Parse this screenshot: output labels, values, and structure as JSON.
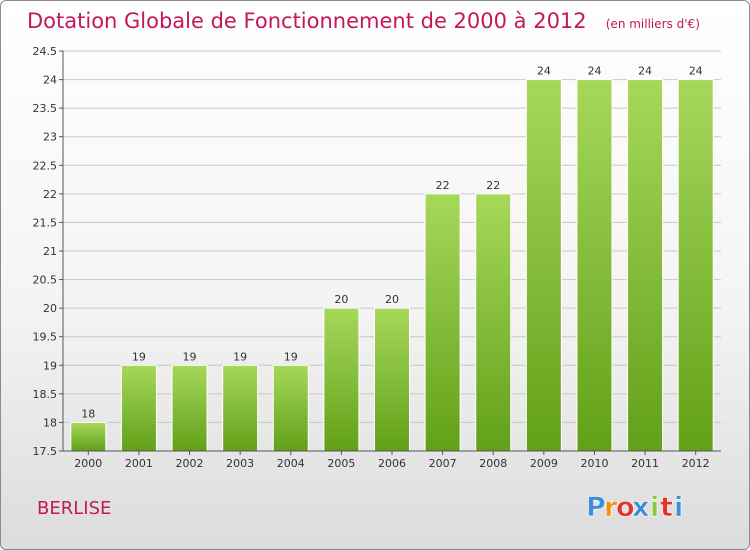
{
  "chart_data": {
    "type": "bar",
    "title": "Dotation Globale de Fonctionnement de 2000 à 2012",
    "unit_label": "(en milliers d'€)",
    "categories": [
      "2000",
      "2001",
      "2002",
      "2003",
      "2004",
      "2005",
      "2006",
      "2007",
      "2008",
      "2009",
      "2010",
      "2011",
      "2012"
    ],
    "values": [
      18,
      19,
      19,
      19,
      19,
      20,
      20,
      22,
      22,
      24,
      24,
      24,
      24
    ],
    "value_labels": [
      "18",
      "19",
      "19",
      "19",
      "19",
      "20",
      "20",
      "22",
      "22",
      "24",
      "24",
      "24",
      "24"
    ],
    "ylim": [
      17.5,
      24.5
    ],
    "yticks": [
      17.5,
      18,
      18.5,
      19,
      19.5,
      20,
      20.5,
      21,
      21.5,
      22,
      22.5,
      23,
      23.5,
      24,
      24.5
    ],
    "ytick_labels": [
      "17.5",
      "18",
      "18.5",
      "19",
      "19.5",
      "20",
      "20.5",
      "21",
      "21.5",
      "22",
      "22.5",
      "23",
      "23.5",
      "24",
      "24.5"
    ],
    "grid": true,
    "xlabel": "",
    "ylabel": "",
    "colors": {
      "bar_top": "#a6d85a",
      "bar_bottom": "#62a019",
      "title": "#c2185b",
      "grid": "#c8c8c8",
      "axis": "#555555"
    }
  },
  "footer": {
    "commune": "BERLISE",
    "brand": {
      "text": "Proxiti",
      "letters": [
        "P",
        "r",
        "o",
        "x",
        "i",
        "t",
        "i"
      ],
      "letter_colors": [
        "#3a8fd6",
        "#f39200",
        "#e6332a",
        "#3a8fd6",
        "#8cc63f",
        "#e6332a",
        "#3a8fd6"
      ]
    }
  }
}
